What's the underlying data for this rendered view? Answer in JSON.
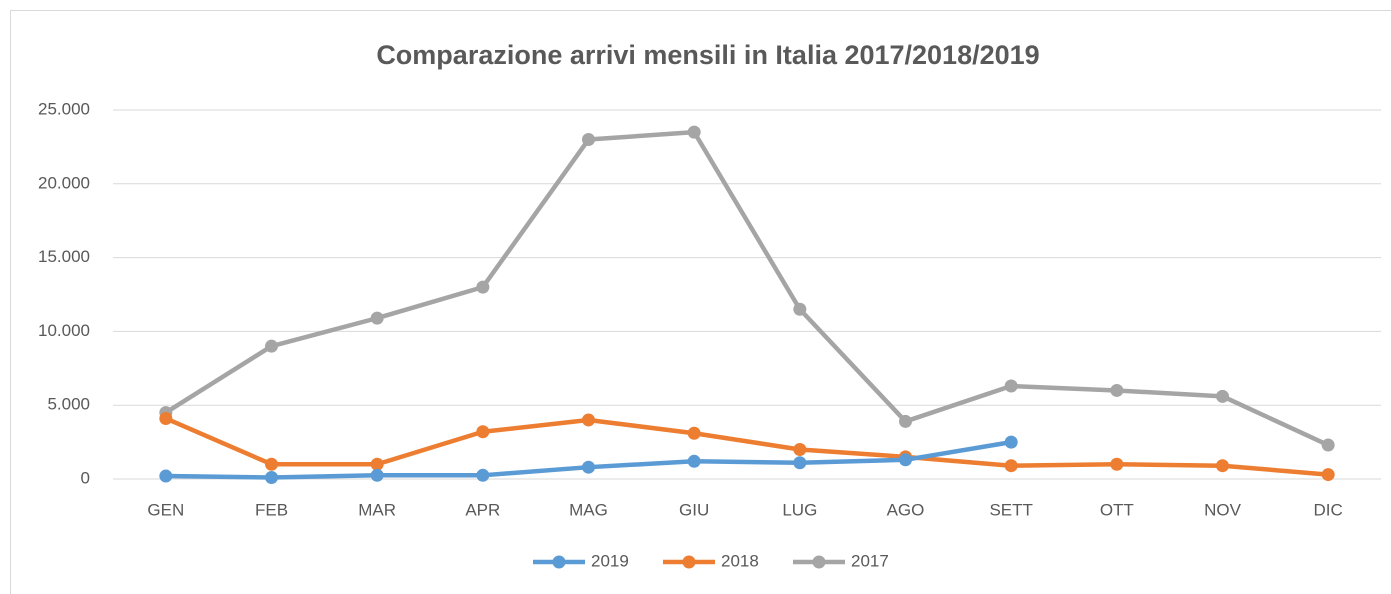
{
  "chart_data": {
    "type": "line",
    "title": "Comparazione arrivi mensili in Italia 2017/2018/2019",
    "categories": [
      "GEN",
      "FEB",
      "MAR",
      "APR",
      "MAG",
      "GIU",
      "LUG",
      "AGO",
      "SETT",
      "OTT",
      "NOV",
      "DIC"
    ],
    "series": [
      {
        "name": "2019",
        "color": "#5b9bd5",
        "values": [
          200,
          100,
          250,
          250,
          800,
          1200,
          1100,
          1300,
          2500,
          null,
          null,
          null
        ]
      },
      {
        "name": "2018",
        "color": "#ed7d31",
        "values": [
          4100,
          1000,
          1000,
          3200,
          4000,
          3100,
          2000,
          1500,
          900,
          1000,
          900,
          300
        ]
      },
      {
        "name": "2017",
        "color": "#a5a5a5",
        "values": [
          4500,
          9000,
          10900,
          13000,
          23000,
          23500,
          11500,
          3900,
          6300,
          6000,
          5600,
          2300
        ]
      }
    ],
    "ylim": [
      0,
      25000
    ],
    "yticks": [
      0,
      {
        "value": 5000,
        "label": "5.000"
      },
      {
        "value": 10000,
        "label": "10.000"
      },
      {
        "value": 15000,
        "label": "15.000"
      },
      {
        "value": 20000,
        "label": "20.000"
      },
      {
        "value": 25000,
        "label": "25.000"
      }
    ],
    "grid": true,
    "legend": "bottom"
  }
}
